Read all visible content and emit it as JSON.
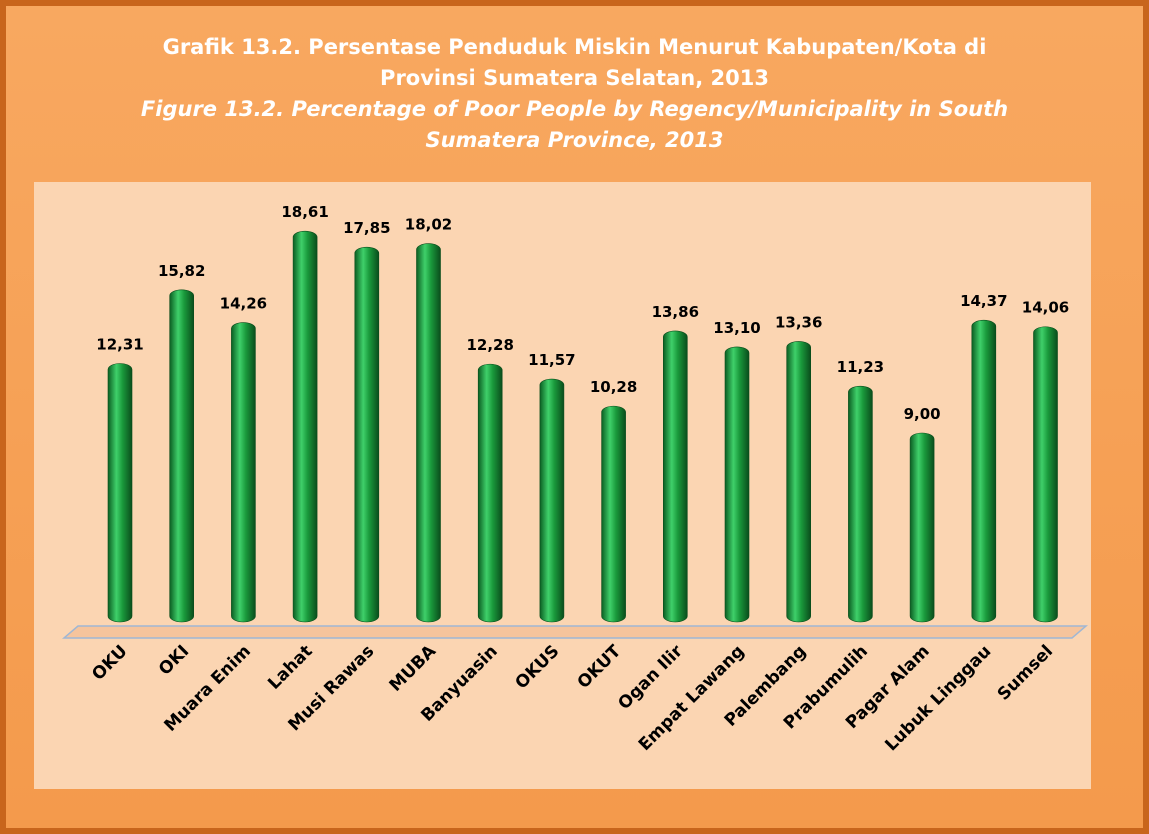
{
  "chart_data": {
    "type": "bar",
    "title": "Grafik 13.2. Persentase Penduduk Miskin Menurut Kabupaten/Kota di Provinsi Sumatera Selatan, 2013",
    "subtitle": "Figure 13.2. Percentage of Poor People by Regency/Municipality in South Sumatera Province, 2013",
    "categories": [
      "OKU",
      "OKI",
      "Muara Enim",
      "Lahat",
      "Musi Rawas",
      "MUBA",
      "Banyuasin",
      "OKUS",
      "OKUT",
      "Ogan Ilir",
      "Empat Lawang",
      "Palembang",
      "Prabumulih",
      "Pagar Alam",
      "Lubuk Linggau",
      "Sumsel"
    ],
    "values": [
      12.31,
      15.82,
      14.26,
      18.61,
      17.85,
      18.02,
      12.28,
      11.57,
      10.28,
      13.86,
      13.1,
      13.36,
      11.23,
      9.0,
      14.37,
      14.06
    ],
    "value_labels": [
      "12,31",
      "15,82",
      "14,26",
      "18,61",
      "17,85",
      "18,02",
      "12,28",
      "11,57",
      "10,28",
      "13,86",
      "13,10",
      "13,36",
      "11,23",
      "9,00",
      "14,37",
      "14,06"
    ],
    "color": "#1a9a3c"
  }
}
